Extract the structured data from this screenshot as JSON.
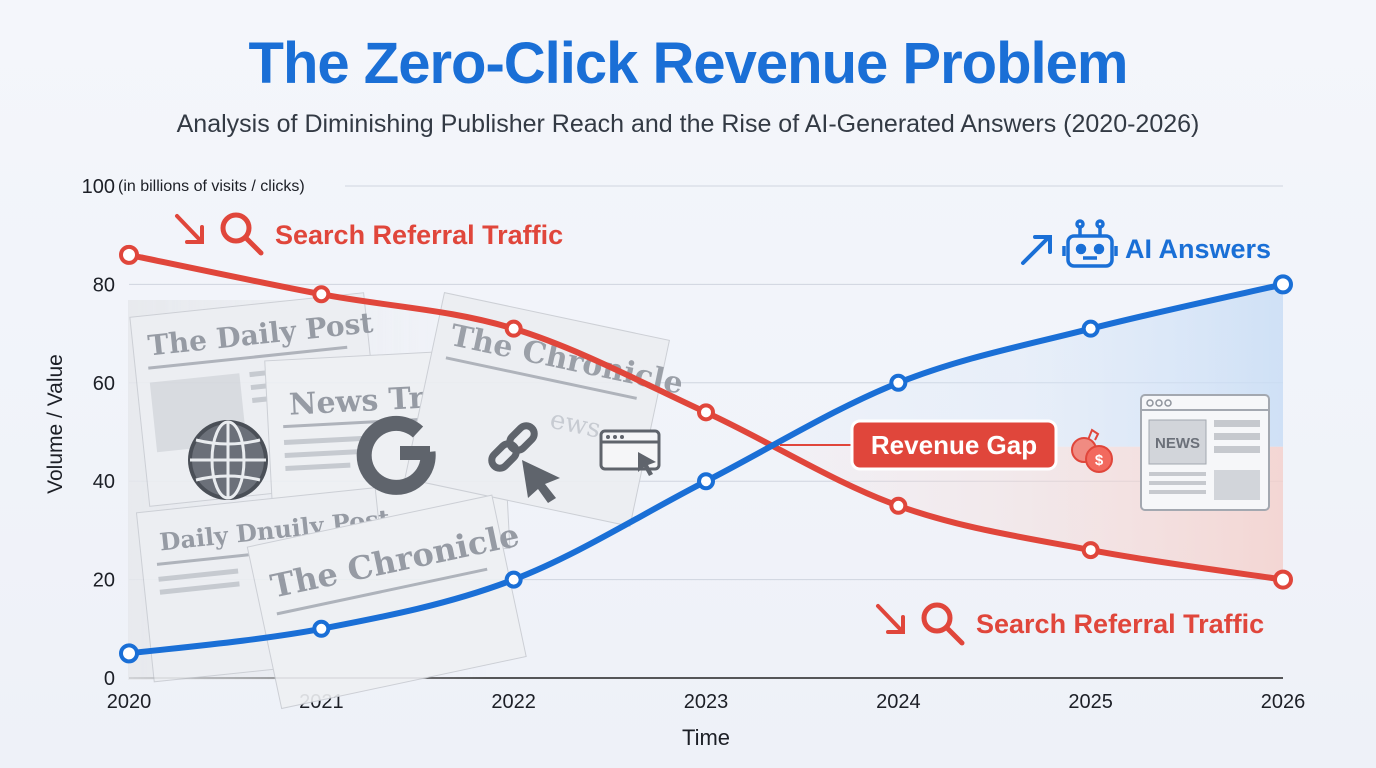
{
  "title": "The Zero-Click Revenue Problem",
  "subtitle": "Analysis of Diminishing Publisher Reach and the Rise of AI-Generated Answers (2020-2026)",
  "colors": {
    "search": "#e0463b",
    "ai": "#1a6fd6",
    "grid": "#cfd5df",
    "axis": "#222222"
  },
  "chart_data": {
    "type": "line",
    "title": "The Zero-Click Revenue Problem",
    "subtitle": "Analysis of Diminishing Publisher Reach and the Rise of AI-Generated Answers (2020-2026)",
    "x": [
      "2020",
      "2021",
      "2022",
      "2023",
      "2024",
      "2025",
      "2026"
    ],
    "xlabel": "Time",
    "ylabel": "Volume / Value",
    "y_unit_note": "(in billions of visits / clicks)",
    "ylim": [
      0,
      100
    ],
    "yticks": [
      0,
      20,
      40,
      60,
      80,
      100
    ],
    "grid": true,
    "series": [
      {
        "name": "Search Referral Traffic",
        "color": "#e0463b",
        "values": [
          86,
          78,
          71,
          54,
          35,
          26,
          20
        ]
      },
      {
        "name": "AI Answers",
        "color": "#1a6fd6",
        "values": [
          5,
          10,
          20,
          40,
          60,
          71,
          80
        ]
      }
    ],
    "annotations": {
      "search_label_top": "Search Referral Traffic",
      "search_label_bottom": "Search Referral Traffic",
      "ai_label": "AI Answers",
      "gap_label": "Revenue Gap"
    },
    "illustrations": {
      "newspaper_mastheads": [
        "The Daily Post",
        "News Tribune",
        "The Chronicle",
        "Daily Dnuily Post",
        "The Chronicle"
      ],
      "news_card_label": "NEWS",
      "ghost_text": "ews",
      "icons": [
        "search-icon",
        "robot-icon",
        "globe-icon",
        "google-g-icon",
        "link-icon",
        "cursor-icon",
        "browser-window-icon",
        "coin-icon",
        "news-page-icon"
      ]
    }
  }
}
